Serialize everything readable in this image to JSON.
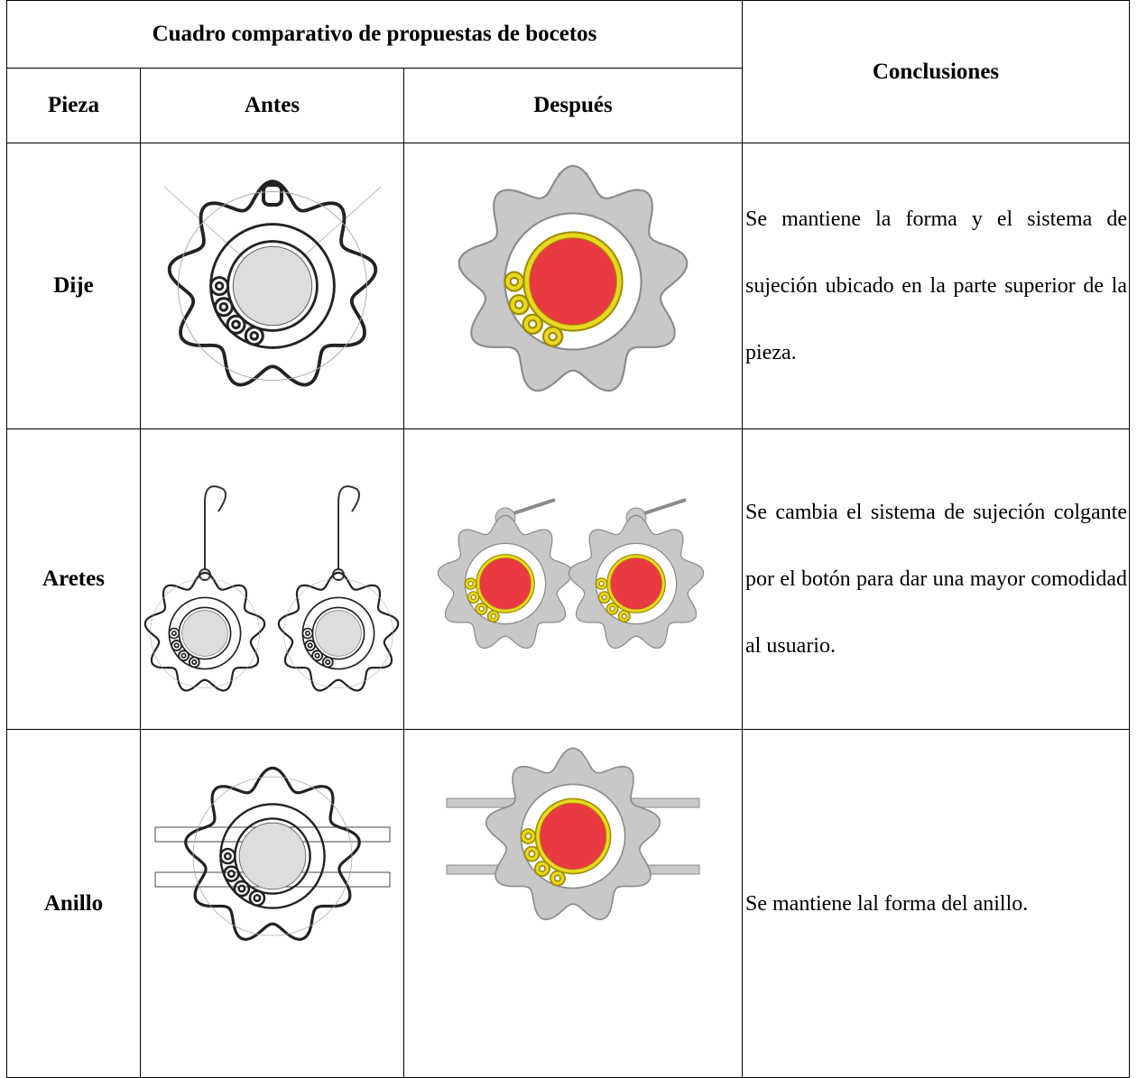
{
  "table": {
    "title": "Cuadro comparativo de propuestas de bocetos",
    "conclusions_header": "Conclusiones",
    "columns": [
      "Pieza",
      "Antes",
      "Después"
    ],
    "rows": [
      {
        "pieza": "Dije",
        "conclusion": "Se mantiene la forma y el sistema de sujeción ubicado en la parte superior de la pieza."
      },
      {
        "pieza": "Aretes",
        "conclusion": "Se cambia el sistema de sujeción colgante por el botón para dar una mayor comodidad al usuario."
      },
      {
        "pieza": "Anillo",
        "conclusion": "Se mantiene lal forma del anillo."
      }
    ]
  }
}
